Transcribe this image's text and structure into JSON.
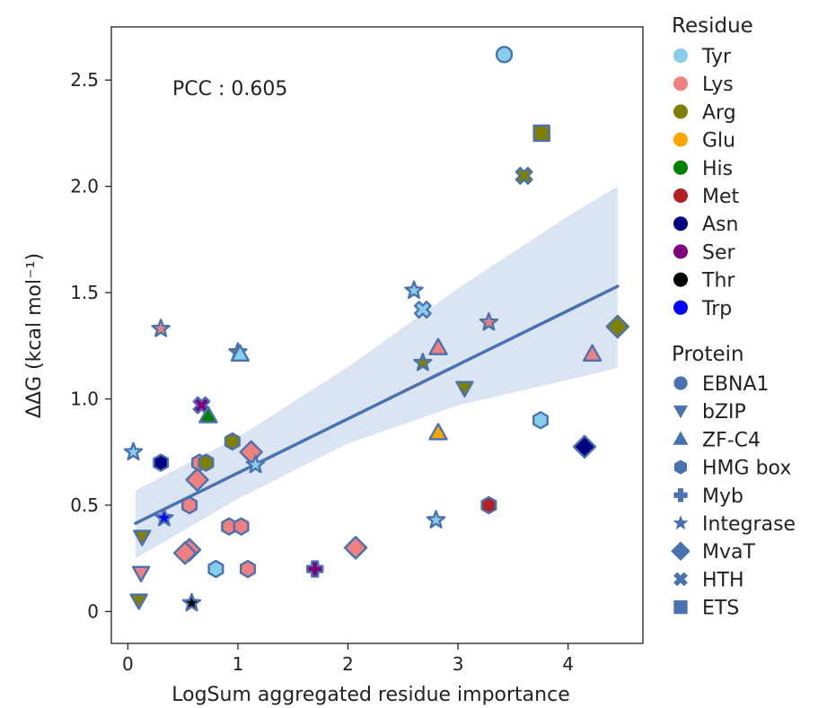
{
  "chart_data": {
    "type": "scatter",
    "xlabel": "LogSum aggregated residue importance",
    "ylabel": "ΔΔG (kcal mol⁻¹)",
    "xlim": [
      -0.15,
      4.68
    ],
    "ylim": [
      -0.15,
      2.75
    ],
    "xticks": [
      0,
      1,
      2,
      3,
      4
    ],
    "xtick_labels": [
      "0",
      "1",
      "2",
      "3",
      "4"
    ],
    "yticks": [
      0,
      0.5,
      1.0,
      1.5,
      2.0,
      2.5
    ],
    "ytick_labels": [
      "0",
      "0.5",
      "1.0",
      "1.5",
      "2.0",
      "2.5"
    ],
    "annotation": "PCC : 0.605",
    "regression": {
      "x0": 0.07,
      "y0": 0.415,
      "x1": 4.45,
      "y1": 1.53,
      "band_upper": [
        [
          0.07,
          0.57
        ],
        [
          1.0,
          0.82
        ],
        [
          2.0,
          1.15
        ],
        [
          3.0,
          1.52
        ],
        [
          4.0,
          1.86
        ],
        [
          4.45,
          2.0
        ]
      ],
      "band_lower": [
        [
          0.07,
          0.25
        ],
        [
          1.0,
          0.53
        ],
        [
          2.0,
          0.79
        ],
        [
          3.0,
          0.97
        ],
        [
          4.0,
          1.09
        ],
        [
          4.45,
          1.145
        ]
      ]
    },
    "colors": {
      "Tyr": "#87ceeb",
      "Lys": "#f08080",
      "Arg": "#808000",
      "Glu": "#ffa500",
      "His": "#008000",
      "Met": "#b22222",
      "Asn": "#000080",
      "Ser": "#800080",
      "Thr": "#000000",
      "Trp": "#0000ff",
      "edge": "#4a72b0",
      "band": "#dbe4f3",
      "line": "#4a72b0"
    },
    "points": [
      {
        "x": 3.42,
        "y": 2.62,
        "residue": "Tyr",
        "protein": "EBNA1"
      },
      {
        "x": 3.76,
        "y": 2.25,
        "residue": "Arg",
        "protein": "ETS"
      },
      {
        "x": 3.6,
        "y": 2.05,
        "residue": "Arg",
        "protein": "HTH"
      },
      {
        "x": 2.6,
        "y": 1.51,
        "residue": "Tyr",
        "protein": "Integrase"
      },
      {
        "x": 2.68,
        "y": 1.42,
        "residue": "Tyr",
        "protein": "HTH"
      },
      {
        "x": 3.28,
        "y": 1.36,
        "residue": "Lys",
        "protein": "Integrase"
      },
      {
        "x": 4.45,
        "y": 1.34,
        "residue": "Arg",
        "protein": "MvaT"
      },
      {
        "x": 0.3,
        "y": 1.33,
        "residue": "Lys",
        "protein": "Integrase"
      },
      {
        "x": 2.82,
        "y": 1.24,
        "residue": "Lys",
        "protein": "ZF-C4"
      },
      {
        "x": 1.0,
        "y": 1.22,
        "residue": "Arg",
        "protein": "Integrase"
      },
      {
        "x": 1.02,
        "y": 1.21,
        "residue": "Tyr",
        "protein": "ZF-C4"
      },
      {
        "x": 4.22,
        "y": 1.21,
        "residue": "Lys",
        "protein": "ZF-C4"
      },
      {
        "x": 2.68,
        "y": 1.17,
        "residue": "Arg",
        "protein": "Integrase"
      },
      {
        "x": 3.06,
        "y": 1.05,
        "residue": "Arg",
        "protein": "bZIP"
      },
      {
        "x": 0.67,
        "y": 0.97,
        "residue": "Ser",
        "protein": "HTH"
      },
      {
        "x": 0.73,
        "y": 0.92,
        "residue": "His",
        "protein": "ZF-C4"
      },
      {
        "x": 3.75,
        "y": 0.9,
        "residue": "Tyr",
        "protein": "HMG box"
      },
      {
        "x": 2.82,
        "y": 0.84,
        "residue": "Glu",
        "protein": "ZF-C4"
      },
      {
        "x": 0.95,
        "y": 0.8,
        "residue": "Arg",
        "protein": "HMG box"
      },
      {
        "x": 4.15,
        "y": 0.775,
        "residue": "Asn",
        "protein": "MvaT"
      },
      {
        "x": 1.12,
        "y": 0.75,
        "residue": "Lys",
        "protein": "MvaT"
      },
      {
        "x": 0.05,
        "y": 0.75,
        "residue": "Tyr",
        "protein": "Integrase"
      },
      {
        "x": 0.3,
        "y": 0.7,
        "residue": "Asn",
        "protein": "HMG box"
      },
      {
        "x": 0.65,
        "y": 0.7,
        "residue": "Lys",
        "protein": "HMG box"
      },
      {
        "x": 0.71,
        "y": 0.7,
        "residue": "Arg",
        "protein": "HMG box"
      },
      {
        "x": 1.16,
        "y": 0.69,
        "residue": "Tyr",
        "protein": "Integrase"
      },
      {
        "x": 0.63,
        "y": 0.62,
        "residue": "Lys",
        "protein": "MvaT"
      },
      {
        "x": 0.56,
        "y": 0.5,
        "residue": "Lys",
        "protein": "HMG box"
      },
      {
        "x": 3.28,
        "y": 0.5,
        "residue": "Met",
        "protein": "HMG box"
      },
      {
        "x": 0.33,
        "y": 0.44,
        "residue": "Trp",
        "protein": "Integrase"
      },
      {
        "x": 2.8,
        "y": 0.43,
        "residue": "Tyr",
        "protein": "Integrase"
      },
      {
        "x": 0.92,
        "y": 0.4,
        "residue": "Lys",
        "protein": "HMG box"
      },
      {
        "x": 1.03,
        "y": 0.4,
        "residue": "Lys",
        "protein": "HMG box"
      },
      {
        "x": 0.13,
        "y": 0.35,
        "residue": "Arg",
        "protein": "bZIP"
      },
      {
        "x": 2.07,
        "y": 0.3,
        "residue": "Lys",
        "protein": "MvaT"
      },
      {
        "x": 0.56,
        "y": 0.29,
        "residue": "Lys",
        "protein": "MvaT"
      },
      {
        "x": 0.52,
        "y": 0.275,
        "residue": "Lys",
        "protein": "MvaT"
      },
      {
        "x": 0.8,
        "y": 0.2,
        "residue": "Tyr",
        "protein": "HMG box"
      },
      {
        "x": 1.09,
        "y": 0.2,
        "residue": "Lys",
        "protein": "HMG box"
      },
      {
        "x": 1.7,
        "y": 0.2,
        "residue": "Ser",
        "protein": "Myb"
      },
      {
        "x": 0.12,
        "y": 0.18,
        "residue": "Lys",
        "protein": "bZIP"
      },
      {
        "x": 0.1,
        "y": 0.05,
        "residue": "Arg",
        "protein": "bZIP"
      },
      {
        "x": 0.58,
        "y": 0.04,
        "residue": "Thr",
        "protein": "Integrase"
      }
    ],
    "legend": {
      "residue_title": "Residue",
      "residues": [
        "Tyr",
        "Lys",
        "Arg",
        "Glu",
        "His",
        "Met",
        "Asn",
        "Ser",
        "Thr",
        "Trp"
      ],
      "protein_title": "Protein",
      "proteins": [
        "EBNA1",
        "bZIP",
        "ZF-C4",
        "HMG box",
        "Myb",
        "Integrase",
        "MvaT",
        "HTH",
        "ETS"
      ]
    }
  }
}
